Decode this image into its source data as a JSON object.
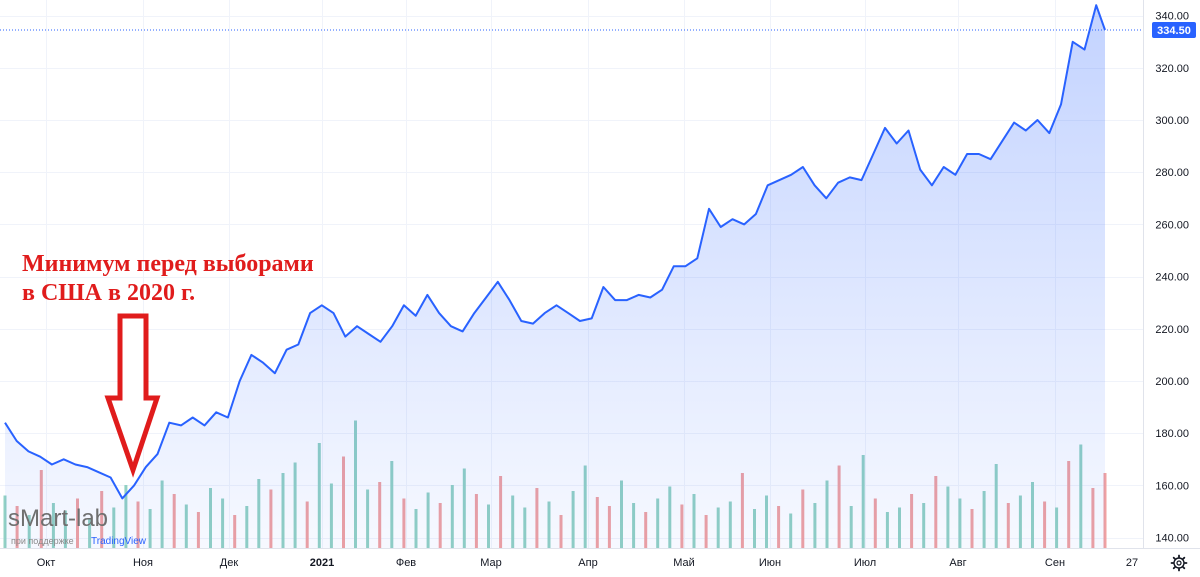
{
  "chart_data": {
    "type": "area",
    "title": "",
    "xlabel": "",
    "ylabel": "",
    "ylim": [
      136,
      346
    ],
    "grid": true,
    "y_ticks": [
      "340.00",
      "320.00",
      "300.00",
      "280.00",
      "260.00",
      "240.00",
      "220.00",
      "200.00",
      "180.00",
      "160.00",
      "140.00"
    ],
    "x_ticks": [
      {
        "label": "Окт",
        "bold": false
      },
      {
        "label": "Ноя",
        "bold": false
      },
      {
        "label": "Дек",
        "bold": false
      },
      {
        "label": "2021",
        "bold": true
      },
      {
        "label": "Фев",
        "bold": false
      },
      {
        "label": "Мар",
        "bold": false
      },
      {
        "label": "Апр",
        "bold": false
      },
      {
        "label": "Май",
        "bold": false
      },
      {
        "label": "Июн",
        "bold": false
      },
      {
        "label": "Июл",
        "bold": false
      },
      {
        "label": "Авг",
        "bold": false
      },
      {
        "label": "Сен",
        "bold": false
      },
      {
        "label": "27",
        "bold": false
      }
    ],
    "series": [
      {
        "name": "",
        "color": "#2962ff",
        "last_value": "334.50",
        "points": [
          {
            "x": "2020-09-24",
            "y": 184
          },
          {
            "x": "2020-09-28",
            "y": 177
          },
          {
            "x": "2020-10-02",
            "y": 173
          },
          {
            "x": "2020-10-06",
            "y": 171
          },
          {
            "x": "2020-10-10",
            "y": 168
          },
          {
            "x": "2020-10-14",
            "y": 170
          },
          {
            "x": "2020-10-18",
            "y": 168
          },
          {
            "x": "2020-10-22",
            "y": 167
          },
          {
            "x": "2020-10-26",
            "y": 165
          },
          {
            "x": "2020-10-30",
            "y": 163
          },
          {
            "x": "2020-11-03",
            "y": 155
          },
          {
            "x": "2020-11-07",
            "y": 160
          },
          {
            "x": "2020-11-11",
            "y": 167
          },
          {
            "x": "2020-11-15",
            "y": 172
          },
          {
            "x": "2020-11-19",
            "y": 184
          },
          {
            "x": "2020-11-23",
            "y": 183
          },
          {
            "x": "2020-11-27",
            "y": 186
          },
          {
            "x": "2020-12-01",
            "y": 183
          },
          {
            "x": "2020-12-05",
            "y": 188
          },
          {
            "x": "2020-12-09",
            "y": 186
          },
          {
            "x": "2020-12-13",
            "y": 200
          },
          {
            "x": "2020-12-17",
            "y": 210
          },
          {
            "x": "2020-12-21",
            "y": 207
          },
          {
            "x": "2020-12-25",
            "y": 203
          },
          {
            "x": "2020-12-29",
            "y": 212
          },
          {
            "x": "2021-01-02",
            "y": 214
          },
          {
            "x": "2021-01-06",
            "y": 226
          },
          {
            "x": "2021-01-10",
            "y": 229
          },
          {
            "x": "2021-01-14",
            "y": 226
          },
          {
            "x": "2021-01-18",
            "y": 217
          },
          {
            "x": "2021-01-22",
            "y": 221
          },
          {
            "x": "2021-01-26",
            "y": 218
          },
          {
            "x": "2021-01-30",
            "y": 215
          },
          {
            "x": "2021-02-03",
            "y": 221
          },
          {
            "x": "2021-02-07",
            "y": 229
          },
          {
            "x": "2021-02-11",
            "y": 225
          },
          {
            "x": "2021-02-15",
            "y": 233
          },
          {
            "x": "2021-02-19",
            "y": 226
          },
          {
            "x": "2021-02-23",
            "y": 221
          },
          {
            "x": "2021-02-27",
            "y": 219
          },
          {
            "x": "2021-03-03",
            "y": 226
          },
          {
            "x": "2021-03-07",
            "y": 232
          },
          {
            "x": "2021-03-11",
            "y": 238
          },
          {
            "x": "2021-03-15",
            "y": 231
          },
          {
            "x": "2021-03-19",
            "y": 223
          },
          {
            "x": "2021-03-23",
            "y": 222
          },
          {
            "x": "2021-03-27",
            "y": 226
          },
          {
            "x": "2021-03-31",
            "y": 229
          },
          {
            "x": "2021-04-04",
            "y": 226
          },
          {
            "x": "2021-04-08",
            "y": 223
          },
          {
            "x": "2021-04-12",
            "y": 224
          },
          {
            "x": "2021-04-16",
            "y": 236
          },
          {
            "x": "2021-04-20",
            "y": 231
          },
          {
            "x": "2021-04-24",
            "y": 231
          },
          {
            "x": "2021-04-28",
            "y": 233
          },
          {
            "x": "2021-05-02",
            "y": 232
          },
          {
            "x": "2021-05-06",
            "y": 235
          },
          {
            "x": "2021-05-10",
            "y": 244
          },
          {
            "x": "2021-05-14",
            "y": 244
          },
          {
            "x": "2021-05-18",
            "y": 247
          },
          {
            "x": "2021-05-22",
            "y": 266
          },
          {
            "x": "2021-05-26",
            "y": 259
          },
          {
            "x": "2021-05-30",
            "y": 262
          },
          {
            "x": "2021-06-03",
            "y": 260
          },
          {
            "x": "2021-06-07",
            "y": 264
          },
          {
            "x": "2021-06-11",
            "y": 275
          },
          {
            "x": "2021-06-15",
            "y": 277
          },
          {
            "x": "2021-06-19",
            "y": 279
          },
          {
            "x": "2021-06-23",
            "y": 282
          },
          {
            "x": "2021-06-27",
            "y": 275
          },
          {
            "x": "2021-07-01",
            "y": 270
          },
          {
            "x": "2021-07-05",
            "y": 276
          },
          {
            "x": "2021-07-09",
            "y": 278
          },
          {
            "x": "2021-07-13",
            "y": 277
          },
          {
            "x": "2021-07-17",
            "y": 287
          },
          {
            "x": "2021-07-21",
            "y": 297
          },
          {
            "x": "2021-07-25",
            "y": 291
          },
          {
            "x": "2021-07-29",
            "y": 296
          },
          {
            "x": "2021-08-02",
            "y": 281
          },
          {
            "x": "2021-08-06",
            "y": 275
          },
          {
            "x": "2021-08-10",
            "y": 282
          },
          {
            "x": "2021-08-14",
            "y": 279
          },
          {
            "x": "2021-08-18",
            "y": 287
          },
          {
            "x": "2021-08-22",
            "y": 287
          },
          {
            "x": "2021-08-26",
            "y": 285
          },
          {
            "x": "2021-08-30",
            "y": 292
          },
          {
            "x": "2021-09-03",
            "y": 299
          },
          {
            "x": "2021-09-07",
            "y": 296
          },
          {
            "x": "2021-09-11",
            "y": 300
          },
          {
            "x": "2021-09-15",
            "y": 295
          },
          {
            "x": "2021-09-19",
            "y": 306
          },
          {
            "x": "2021-09-23",
            "y": 330
          },
          {
            "x": "2021-09-27",
            "y": 327
          },
          {
            "x": "2021-10-01",
            "y": 344
          },
          {
            "x": "2021-10-04",
            "y": 334.5
          }
        ]
      }
    ],
    "volume": {
      "up_color": "#92d1c3",
      "down_color": "#f0a1a1",
      "values": [
        0.35,
        0.28,
        0.22,
        0.52,
        0.3,
        0.25,
        0.33,
        0.2,
        0.38,
        0.27,
        0.42,
        0.31,
        0.26,
        0.45,
        0.36,
        0.29,
        0.24,
        0.4,
        0.33,
        0.22,
        0.28,
        0.46,
        0.39,
        0.5,
        0.57,
        0.31,
        0.7,
        0.43,
        0.61,
        0.85,
        0.39,
        0.44,
        0.58,
        0.33,
        0.26,
        0.37,
        0.3,
        0.42,
        0.53,
        0.36,
        0.29,
        0.48,
        0.35,
        0.27,
        0.4,
        0.31,
        0.22,
        0.38,
        0.55,
        0.34,
        0.28,
        0.45,
        0.3,
        0.24,
        0.33,
        0.41,
        0.29,
        0.36,
        0.22,
        0.27,
        0.31,
        0.5,
        0.26,
        0.35,
        0.28,
        0.23,
        0.39,
        0.3,
        0.45,
        0.55,
        0.28,
        0.62,
        0.33,
        0.24,
        0.27,
        0.36,
        0.3,
        0.48,
        0.41,
        0.33,
        0.26,
        0.38,
        0.56,
        0.3,
        0.35,
        0.44,
        0.31,
        0.27,
        0.58,
        0.69,
        0.4,
        0.5
      ],
      "up": [
        1,
        0,
        1,
        0,
        1,
        1,
        0,
        1,
        0,
        1,
        1,
        0,
        1,
        1,
        0,
        1,
        0,
        1,
        1,
        0,
        1,
        1,
        0,
        1,
        1,
        0,
        1,
        1,
        0,
        1,
        1,
        0,
        1,
        0,
        1,
        1,
        0,
        1,
        1,
        0,
        1,
        0,
        1,
        1,
        0,
        1,
        0,
        1,
        1,
        0,
        0,
        1,
        1,
        0,
        1,
        1,
        0,
        1,
        0,
        1,
        1,
        0,
        1,
        1,
        0,
        1,
        0,
        1,
        1,
        0,
        1,
        1,
        0,
        1,
        1,
        0,
        1,
        0,
        1,
        1,
        0,
        1,
        1,
        0,
        1,
        1,
        0,
        1,
        0,
        1,
        0,
        0
      ]
    },
    "annotation": {
      "lines": [
        "Минимум перед выборами",
        "в США в 2020 г."
      ]
    }
  },
  "watermark": {
    "brand": "sMart-lab",
    "support": "при поддержке",
    "partner": "TradingView"
  },
  "settings_icon": "gear-icon"
}
